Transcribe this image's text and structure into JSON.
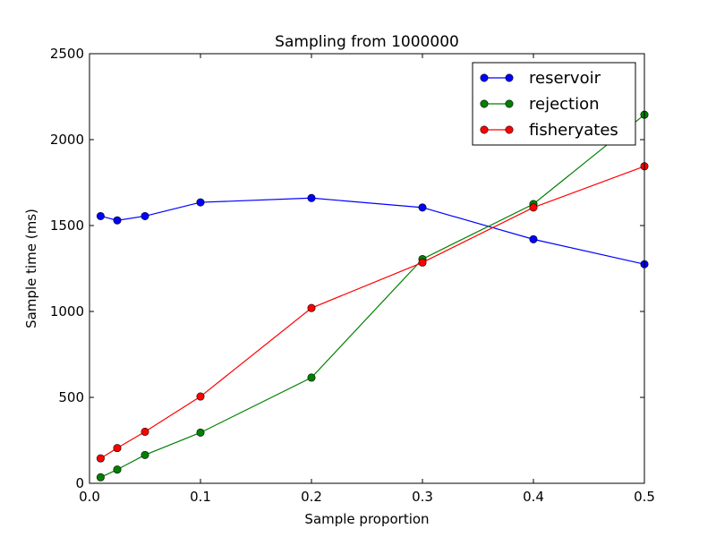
{
  "chart_data": {
    "type": "line",
    "title": "Sampling from 1000000",
    "xlabel": "Sample proportion",
    "ylabel": "Sample time (ms)",
    "xlim": [
      0,
      0.5
    ],
    "ylim": [
      0,
      2500
    ],
    "xticks": [
      "0.0",
      "0.1",
      "0.2",
      "0.3",
      "0.4",
      "0.5"
    ],
    "yticks": [
      "0",
      "500",
      "1000",
      "1500",
      "2000",
      "2500"
    ],
    "x": [
      0.01,
      0.025,
      0.05,
      0.1,
      0.2,
      0.3,
      0.4,
      0.5
    ],
    "grid": false,
    "legend_position": "top-right",
    "series": [
      {
        "name": "reservoir",
        "color": "#0000ff",
        "values": [
          1555,
          1530,
          1555,
          1635,
          1660,
          1605,
          1420,
          1275
        ]
      },
      {
        "name": "rejection",
        "color": "#008000",
        "values": [
          35,
          80,
          165,
          295,
          615,
          1305,
          1625,
          2145
        ]
      },
      {
        "name": "fisheryates",
        "color": "#ff0000",
        "values": [
          145,
          205,
          300,
          505,
          1020,
          1285,
          1605,
          1845
        ]
      }
    ]
  }
}
